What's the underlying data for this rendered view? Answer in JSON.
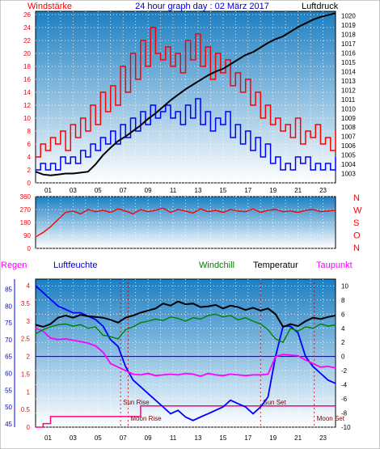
{
  "header": {
    "left_label": "Windstärke",
    "title": "24 hour graph day : 02 März 2017",
    "right_label": "Luftdruck"
  },
  "colors": {
    "wind": "#ff0000",
    "gust": "#ff0000",
    "avg": "#0000ff",
    "pressure": "#000000",
    "windchill": "#008000",
    "temperature": "#000000",
    "dewpoint": "#ff00ff",
    "humidity": "#0000ff",
    "rain": "#ff0080",
    "axis_red": "#ff0000",
    "axis_blue": "#0000ff",
    "bg_top": "#1c7fc3",
    "bg_bottom": "#ffffff"
  },
  "chart_data": [
    {
      "id": "wind",
      "type": "line",
      "left_axis_ticks": [
        "0",
        "2",
        "4",
        "6",
        "8",
        "10",
        "12",
        "14",
        "16",
        "18",
        "20",
        "22",
        "24",
        "26"
      ],
      "right_axis_ticks": [
        "1003",
        "1004",
        "1005",
        "1006",
        "1007",
        "1008",
        "1009",
        "1010",
        "1011",
        "1012",
        "1013",
        "1014",
        "1015",
        "1016",
        "1017",
        "1018",
        "1019",
        "1020"
      ],
      "x_ticks": [
        "01",
        "03",
        "05",
        "07",
        "09",
        "11",
        "13",
        "15",
        "17",
        "19",
        "21",
        "23"
      ],
      "ylim_left": [
        0,
        26
      ],
      "ylim_right": [
        1002,
        1020.5
      ],
      "series": [
        {
          "key": "gust",
          "values": [
            4,
            6,
            5,
            7,
            6,
            8,
            5,
            9,
            7,
            10,
            8,
            12,
            9,
            14,
            11,
            15,
            12,
            18,
            14,
            20,
            16,
            22,
            18,
            24,
            20,
            19,
            21,
            18,
            20,
            17,
            22,
            19,
            23,
            18,
            21,
            16,
            20,
            17,
            19,
            15,
            17,
            14,
            16,
            12,
            14,
            10,
            12,
            9,
            10,
            8,
            9,
            7,
            10,
            6,
            8,
            7,
            9,
            6,
            7,
            5,
            8
          ]
        },
        {
          "key": "avg",
          "values": [
            2,
            3,
            2,
            3,
            2,
            4,
            3,
            4,
            3,
            5,
            4,
            6,
            5,
            7,
            6,
            8,
            6,
            9,
            7,
            10,
            8,
            11,
            9,
            12,
            10,
            11,
            12,
            10,
            11,
            9,
            12,
            10,
            13,
            9,
            11,
            8,
            10,
            9,
            11,
            7,
            9,
            6,
            8,
            5,
            7,
            4,
            6,
            3,
            4,
            2,
            3,
            2,
            4,
            3,
            4,
            2,
            3,
            2,
            3,
            2,
            4
          ]
        },
        {
          "key": "pressure",
          "values": [
            1003.2,
            1002.9,
            1002.8,
            1002.9,
            1003.0,
            1003.0,
            1003.1,
            1003.2,
            1004.0,
            1005.0,
            1005.8,
            1006.5,
            1007.0,
            1007.6,
            1008.2,
            1008.9,
            1009.5,
            1010.2,
            1010.9,
            1011.5,
            1012.1,
            1012.6,
            1013.1,
            1013.6,
            1014.0,
            1014.3,
            1014.8,
            1015.3,
            1015.8,
            1016.1,
            1016.6,
            1017.1,
            1017.5,
            1017.8,
            1018.3,
            1018.8,
            1019.2,
            1019.6,
            1019.9,
            1020.1,
            1020.3
          ]
        }
      ]
    },
    {
      "id": "direction",
      "type": "line",
      "left_axis_ticks": [
        "0",
        "90",
        "180",
        "270",
        "360"
      ],
      "compass": [
        "N",
        "W",
        "S",
        "O",
        "N"
      ],
      "ylim": [
        0,
        360
      ],
      "series": [
        {
          "key": "direction",
          "values": [
            80,
            110,
            150,
            200,
            250,
            260,
            240,
            270,
            255,
            265,
            250,
            275,
            260,
            240,
            270,
            255,
            265,
            280,
            250,
            270,
            260,
            245,
            275,
            255,
            265,
            250,
            270,
            260,
            255,
            275,
            250,
            265,
            270,
            255,
            260,
            250,
            265,
            270,
            255,
            260,
            265
          ]
        }
      ]
    },
    {
      "id": "temperature",
      "type": "line",
      "labels": {
        "rain": "Regen",
        "humidity": "Luftfeuchte",
        "windchill": "Windchill",
        "temperature": "Temperatur",
        "dewpoint": "Taupunkt"
      },
      "left_axis_ticks": [
        "45",
        "50",
        "55",
        "60",
        "65",
        "70",
        "75",
        "80",
        "85"
      ],
      "rain_axis_ticks": [
        "0",
        "0.5",
        "1",
        "1.5",
        "2",
        "2.5",
        "3",
        "3.5",
        "4"
      ],
      "right_axis_ticks": [
        "-10",
        "-8",
        "-6",
        "-4",
        "-2",
        "0",
        "2",
        "4",
        "6",
        "8",
        "10"
      ],
      "x_ticks": [
        "01",
        "03",
        "05",
        "07",
        "09",
        "11",
        "13",
        "15",
        "17",
        "19",
        "21",
        "23"
      ],
      "ylim_temp": [
        -10,
        10.5
      ],
      "ylim_humidity": [
        44,
        88
      ],
      "events": [
        {
          "label": "Sun Rise",
          "hour": 6.8
        },
        {
          "label": "Moon Rise",
          "hour": 7.4
        },
        {
          "label": "Sun Set",
          "hour": 18.0
        },
        {
          "label": "Moon Set",
          "hour": 22.3
        }
      ],
      "series": [
        {
          "key": "temperature",
          "values": [
            4.5,
            4.2,
            4.6,
            5.5,
            5.8,
            5.5,
            5.9,
            5.7,
            5.6,
            5.5,
            5.2,
            4.8,
            5.5,
            5.8,
            6.2,
            6.5,
            6.8,
            7.5,
            7.2,
            7.8,
            7.4,
            7.5,
            7.0,
            7.1,
            7.3,
            6.8,
            7.2,
            7.0,
            6.6,
            6.9,
            6.5,
            6.8,
            6.0,
            4.2,
            4.6,
            4.3,
            5.0,
            5.5,
            5.3,
            5.6,
            5.8
          ]
        },
        {
          "key": "windchill",
          "values": [
            3.2,
            3.8,
            4.2,
            4.5,
            4.6,
            4.3,
            4.5,
            4.0,
            4.2,
            3.0,
            2.8,
            2.5,
            3.8,
            4.2,
            4.8,
            5.0,
            5.3,
            5.1,
            5.6,
            5.4,
            5.0,
            5.5,
            5.3,
            5.8,
            6.0,
            5.6,
            5.8,
            5.2,
            5.5,
            5.0,
            4.6,
            3.8,
            2.5,
            2.0,
            4.0,
            3.6,
            4.2,
            4.0,
            4.6,
            4.3,
            4.5
          ]
        },
        {
          "key": "dewpoint",
          "values": [
            4.0,
            3.6,
            2.6,
            2.4,
            2.5,
            2.3,
            2.1,
            1.9,
            1.5,
            0.6,
            -1.0,
            -1.5,
            -2.0,
            -2.5,
            -2.6,
            -2.4,
            -2.7,
            -2.6,
            -2.5,
            -2.6,
            -2.4,
            -2.5,
            -2.8,
            -2.4,
            -2.6,
            -2.7,
            -2.5,
            -2.6,
            -2.7,
            -2.6,
            -2.6,
            -2.5,
            0.0,
            0.3,
            0.2,
            0.1,
            -0.5,
            -1.0,
            -1.5,
            -1.4,
            -1.6
          ]
        },
        {
          "key": "humidity",
          "values": [
            86,
            84,
            82,
            80,
            79,
            78,
            78,
            77,
            76,
            74,
            70,
            68,
            62,
            58,
            56,
            54,
            52,
            50,
            48,
            49,
            47,
            46,
            47,
            48,
            49,
            50,
            52,
            51,
            50,
            48,
            50,
            53,
            65,
            74,
            74,
            72,
            65,
            62,
            60,
            58,
            57
          ]
        },
        {
          "key": "rain",
          "values": [
            0,
            0.1,
            0.3,
            0.3,
            0.3,
            0.3,
            0.3,
            0.3,
            0.3,
            0.3,
            0.3,
            0.3,
            0.3,
            0.3,
            0.6,
            0.6,
            0.6,
            0.6,
            0.6,
            0.6,
            0.6,
            0.6,
            0.6,
            0.6,
            0.6,
            0.6,
            0.6,
            0.6,
            0.6,
            0.6,
            0.6,
            0.6,
            0.6,
            0.6,
            0.6,
            0.6,
            0.6,
            0.6,
            0.6,
            0.6,
            0.6
          ]
        }
      ]
    }
  ]
}
